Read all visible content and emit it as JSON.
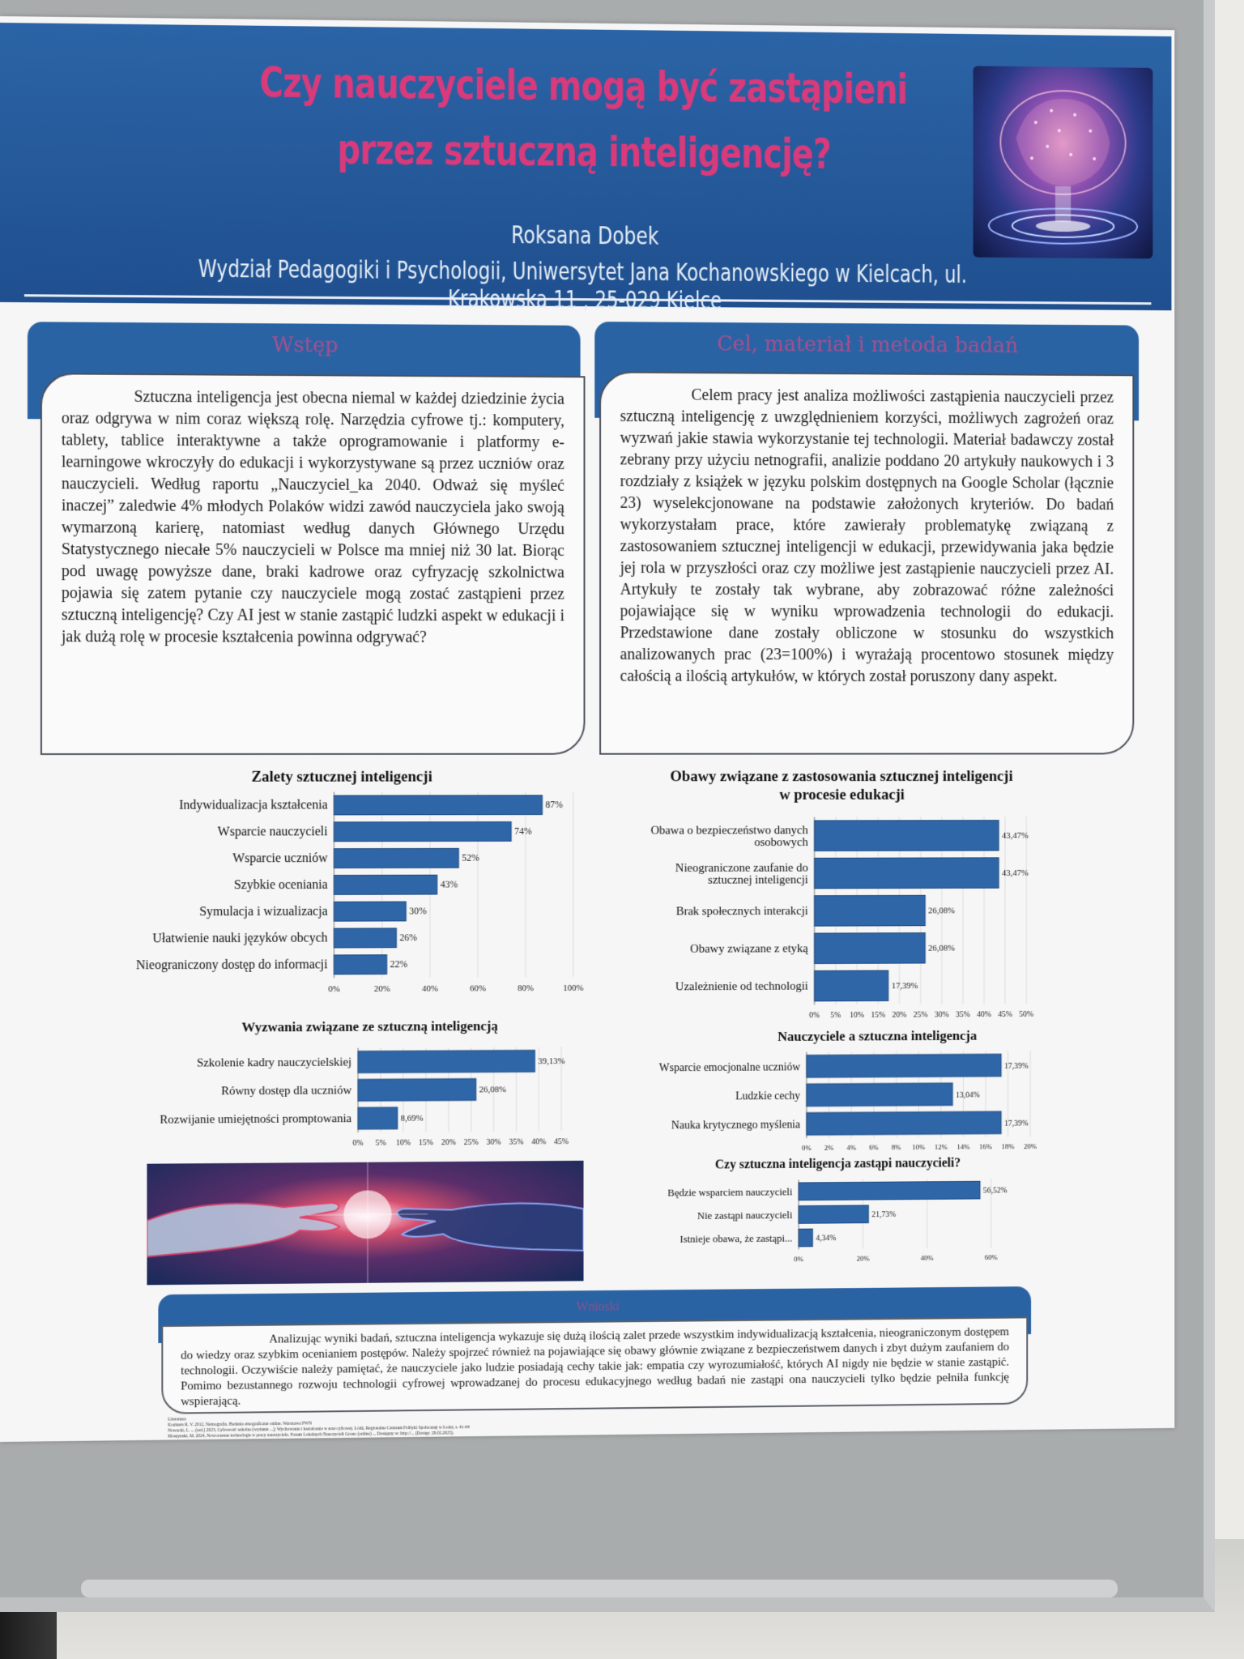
{
  "title_lines": [
    "Czy nauczyciele mogą być zastąpieni",
    "przez sztuczną inteligencję?"
  ],
  "author": "Roksana Dobek",
  "affiliation": "Wydział Pedagogiki i Psychologii, Uniwersytet Jana Kochanowskiego w Kielcach, ul. Krakowska 11 , 25-029 Kielce",
  "intro": {
    "heading": "Wstęp",
    "text": "Sztuczna inteligencja jest obecna niemal w każdej dziedzinie życia oraz odgrywa w nim coraz większą rolę. Narzędzia cyfrowe tj.: komputery, tablety, tablice interaktywne a także oprogramowanie i platformy e-learningowe wkroczyły do edukacji i wykorzystywane są przez uczniów oraz nauczycieli. Według raportu „Nauczyciel_ka 2040. Odważ się myśleć inaczej” zaledwie 4% młodych Polaków widzi zawód nauczyciela jako swoją wymarzoną karierę, natomiast według danych Głównego Urzędu Statystycznego niecałe 5% nauczycieli w Polsce ma mniej niż 30 lat. Biorąc pod uwagę powyższe dane, braki kadrowe oraz cyfryzację szkolnictwa pojawia się zatem pytanie czy nauczyciele mogą zostać zastąpieni przez sztuczną inteligencję? Czy AI jest w stanie zastąpić ludzki aspekt w edukacji i jak dużą rolę w procesie kształcenia powinna odgrywać?"
  },
  "method": {
    "heading": "Cel, materiał i metoda badań",
    "text": "Celem pracy jest analiza możliwości zastąpienia nauczycieli przez sztuczną inteligencję z uwzględnieniem korzyści, możliwych zagrożeń oraz wyzwań jakie stawia wykorzystanie tej technologii. Materiał badawczy został zebrany przy użyciu netnografii, analizie poddano 20 artykuły naukowych i 3 rozdziały z książek w języku polskim dostępnych na Google Scholar (łącznie 23) wyselekcjonowane na podstawie założonych kryteriów. Do badań wykorzystałam prace, które zawierały problematykę związaną z zastosowaniem sztucznej inteligencji w edukacji, przewidywania jaka będzie jej rola w przyszłości oraz czy możliwe jest zastąpienie nauczycieli przez AI. Artykuły te zostały tak wybrane, aby zobrazować różne zależności pojawiające się w wyniku wprowadzenia technologii do edukacji. Przedstawione dane zostały obliczone w stosunku do wszystkich analizowanych prac (23=100%) i wyrażają procentowo stosunek między całością a ilością artykułów, w których został poruszony dany aspekt."
  },
  "chart_data": [
    {
      "type": "bar",
      "orientation": "horizontal",
      "title": "Zalety sztucznej inteligencji",
      "categories": [
        "Indywidualizacja kształcenia",
        "Wsparcie nauczycieli",
        "Wsparcie uczniów",
        "Szybkie oceniania",
        "Symulacja i wizualizacja",
        "Ułatwienie nauki języków obcych",
        "Nieograniczony dostęp do informacji"
      ],
      "values": [
        87,
        74,
        52,
        43,
        30,
        26,
        22
      ],
      "value_labels": [
        "87%",
        "74%",
        "52%",
        "43%",
        "30%",
        "26%",
        "22%"
      ],
      "xlim": [
        0,
        100
      ],
      "ticks": [
        "0%",
        "20%",
        "40%",
        "60%",
        "80%",
        "100%"
      ],
      "bar_color": "#2f66a8"
    },
    {
      "type": "bar",
      "orientation": "horizontal",
      "title": "Obawy związane z zastosowania sztucznej inteligencji w procesie edukacji",
      "categories": [
        "Obawa o bezpieczeństwo danych osobowych",
        "Nieograniczone zaufanie do sztucznej inteligencji",
        "Brak społecznych interakcji",
        "Obawy związane z etyką",
        "Uzależnienie od technologii"
      ],
      "values": [
        43.47,
        43.47,
        26.08,
        26.08,
        17.39
      ],
      "value_labels": [
        "43,47%",
        "43,47%",
        "26,08%",
        "26,08%",
        "17,39%"
      ],
      "xlim": [
        0,
        50
      ],
      "ticks": [
        "0%",
        "5%",
        "10%",
        "15%",
        "20%",
        "25%",
        "30%",
        "35%",
        "40%",
        "45%",
        "50%"
      ],
      "bar_color": "#2f66a8"
    },
    {
      "type": "bar",
      "orientation": "horizontal",
      "title": "Wyzwania związane ze sztuczną inteligencją",
      "categories": [
        "Szkolenie kadry nauczycielskiej",
        "Równy dostęp dla uczniów",
        "Rozwijanie umiejętności promptowania"
      ],
      "values": [
        39.13,
        26.08,
        8.69
      ],
      "value_labels": [
        "39,13%",
        "26,08%",
        "8,69%"
      ],
      "xlim": [
        0,
        45
      ],
      "ticks": [
        "0%",
        "5%",
        "10%",
        "15%",
        "20%",
        "25%",
        "30%",
        "35%",
        "40%",
        "45%"
      ],
      "bar_color": "#2f66a8"
    },
    {
      "type": "bar",
      "orientation": "horizontal",
      "title": "Nauczyciele a sztuczna inteligencja",
      "categories": [
        "Wsparcie emocjonalne uczniów",
        "Ludzkie cechy",
        "Nauka krytycznego myślenia"
      ],
      "values": [
        17.39,
        13.04,
        17.39
      ],
      "value_labels": [
        "17,39%",
        "13,04%",
        "17,39%"
      ],
      "xlim": [
        0,
        20
      ],
      "ticks": [
        "0%",
        "2%",
        "4%",
        "6%",
        "8%",
        "10%",
        "12%",
        "14%",
        "16%",
        "18%",
        "20%"
      ],
      "bar_color": "#2f66a8"
    },
    {
      "type": "bar",
      "orientation": "horizontal",
      "title": "Czy sztuczna inteligencja zastąpi nauczycieli?",
      "categories": [
        "Będzie wsparciem nauczycieli",
        "Nie zastąpi nauczycieli",
        "Istnieje obawa, że zastąpi..."
      ],
      "values": [
        56.52,
        21.73,
        4.34
      ],
      "value_labels": [
        "56,52%",
        "21,73%",
        "4,34%"
      ],
      "xlim": [
        0,
        60
      ],
      "ticks": [
        "0%",
        "20%",
        "40%",
        "60%"
      ],
      "bar_color": "#2f66a8"
    }
  ],
  "conclusion": {
    "heading": "Wnioski",
    "text": "Analizując wyniki badań, sztuczna inteligencja wykazuje się dużą ilością zalet przede wszystkim indywidualizacją kształcenia, nieograniczonym dostępem do wiedzy oraz szybkim ocenianiem postępów. Należy spojrzeć również na pojawiające się obawy głównie związane z bezpieczeństwem danych i zbyt dużym zaufaniem do technologii. Oczywiście należy pamiętać, że nauczyciele jako ludzie posiadają cechy takie jak: empatia czy wyrozumiałość, których AI nigdy nie będzie w stanie zastąpić. Pomimo bezustannego rozwoju technologii cyfrowej wprowadzanej do procesu edukacyjnego według badań nie zastąpi ona nauczycieli tylko będzie pełniła funkcję wspierającą."
  },
  "references": [
    "Literatura:",
    "Kozinets R. V. 2012, Netnografia. Badania etnograficzne online. Warszawa PWN",
    "Nowacki, L. ... (red.) 2023, Cyfrowość szkolna (wydanie ...); Wychowanie i kształcenie w erze cyfrowej. Łódź, Regionalne Centrum Polityki Społecznej w Łodzi, s. 41-64",
    "Moszynski, M. 2024, Nowoczesne technologie w pracy nauczyciela. Forum Lokalnych Nauczycieli Grono (online) ... Dostępny w: http://... (Dostęp: 29.02.2025)."
  ]
}
